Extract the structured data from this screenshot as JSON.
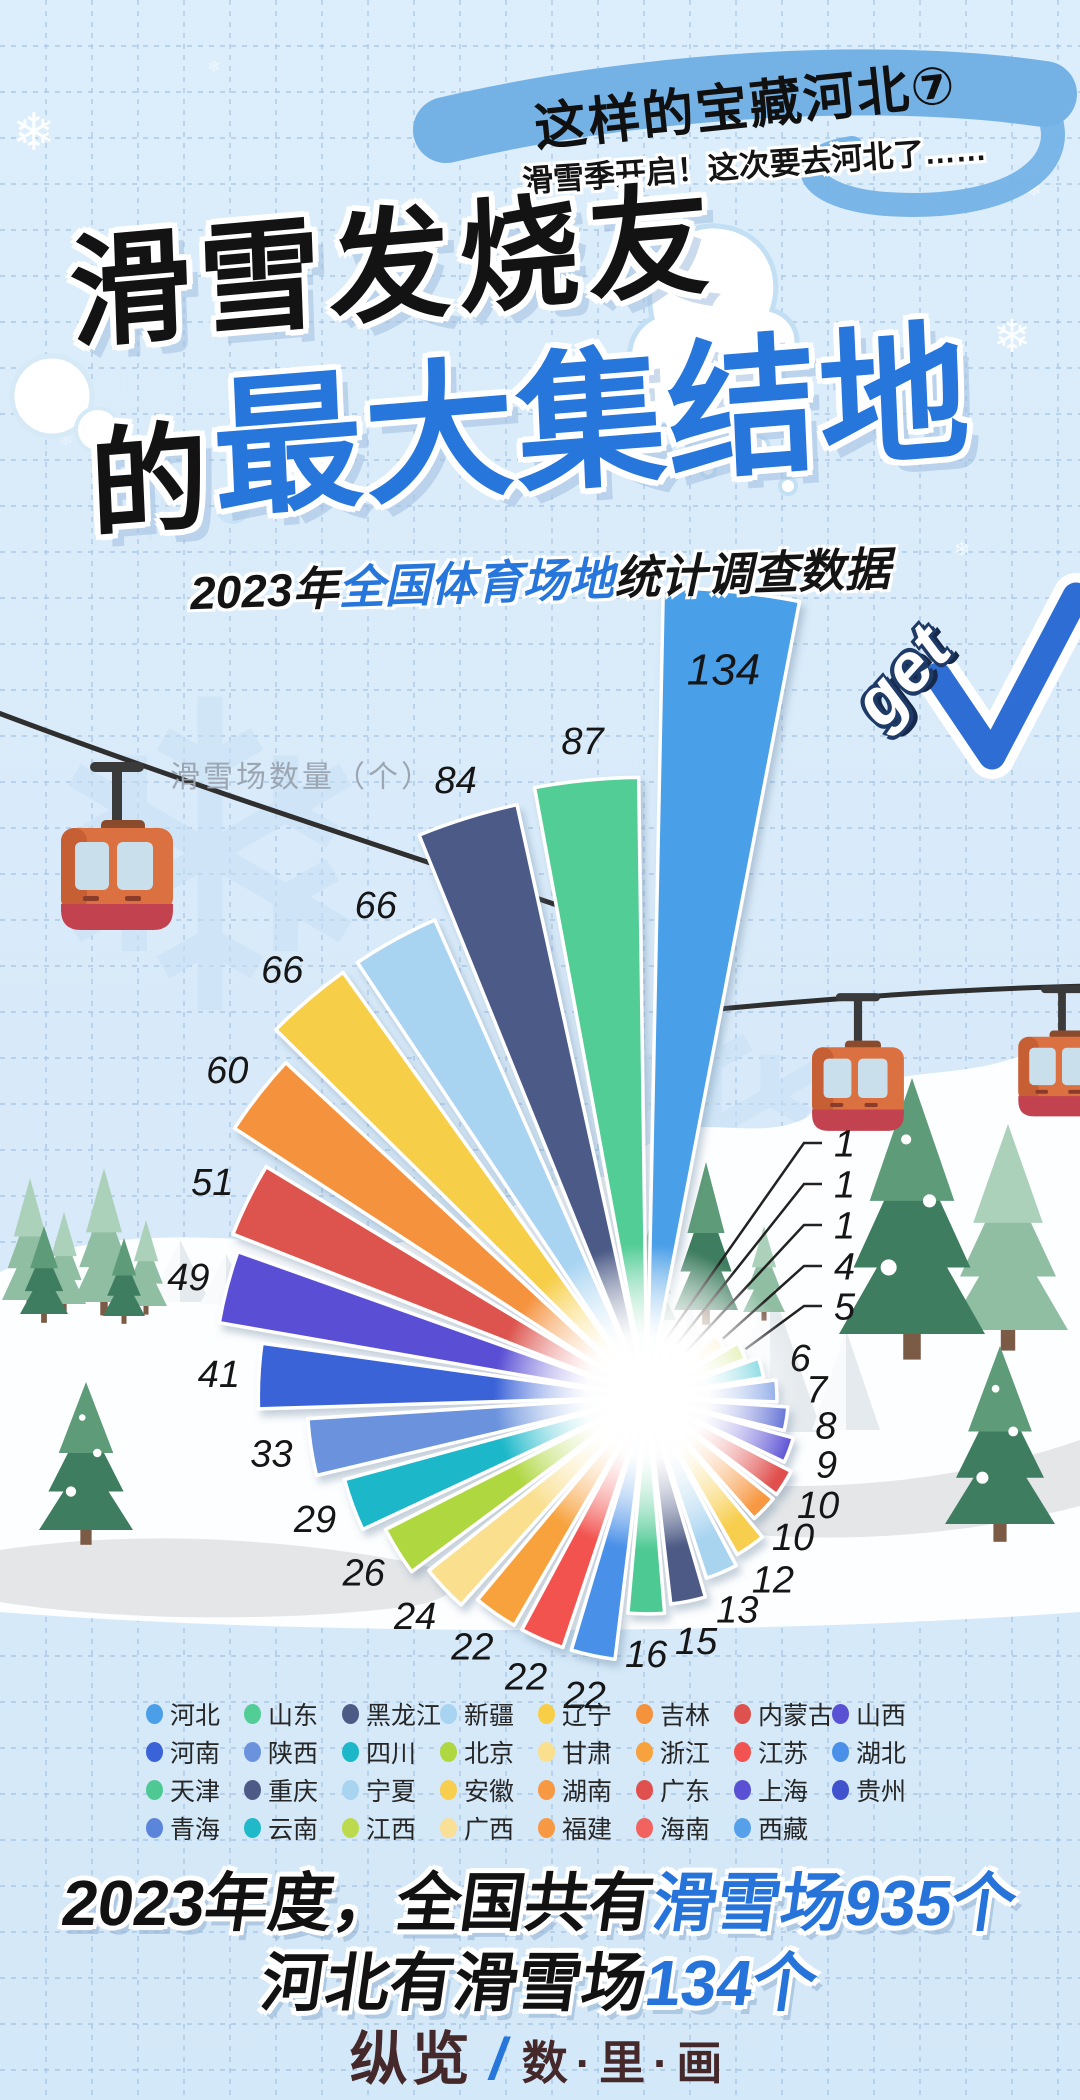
{
  "badge": {
    "title": "这样的宝藏河北⑦",
    "subtitle": "滑雪季开启！这次要去河北了……"
  },
  "title": {
    "line1": "滑雪发烧友",
    "line2_prefix": "的",
    "line2_main": "最大集结地",
    "get_label": "get"
  },
  "subtitle": {
    "prefix": "2023年",
    "highlight": "全国体育场地",
    "suffix": "统计调查数据"
  },
  "chart_data": {
    "type": "pie",
    "variant": "nightingale_rose",
    "title": "2023年全国体育场地统计调查数据",
    "unit_label": "滑雪场数量（个）",
    "start_angle_deg": 84,
    "direction": "counterclockwise",
    "series": [
      {
        "name": "河北",
        "value": 134,
        "color": "#4A9FE8"
      },
      {
        "name": "山东",
        "value": 87,
        "color": "#52CD96"
      },
      {
        "name": "黑龙江",
        "value": 84,
        "color": "#4C5A86"
      },
      {
        "name": "新疆",
        "value": 66,
        "color": "#A8D4F2"
      },
      {
        "name": "辽宁",
        "value": 66,
        "color": "#F7CE46"
      },
      {
        "name": "吉林",
        "value": 60,
        "color": "#F5923C"
      },
      {
        "name": "内蒙古",
        "value": 51,
        "color": "#DD524E"
      },
      {
        "name": "山西",
        "value": 49,
        "color": "#5A50D4"
      },
      {
        "name": "河南",
        "value": 41,
        "color": "#3B63D8"
      },
      {
        "name": "陕西",
        "value": 33,
        "color": "#6B92DD"
      },
      {
        "name": "四川",
        "value": 29,
        "color": "#1CB8CA"
      },
      {
        "name": "北京",
        "value": 26,
        "color": "#AFD73F"
      },
      {
        "name": "甘肃",
        "value": 24,
        "color": "#F9DF8E"
      },
      {
        "name": "浙江",
        "value": 22,
        "color": "#F7A23C"
      },
      {
        "name": "江苏",
        "value": 22,
        "color": "#F25250"
      },
      {
        "name": "湖北",
        "value": 22,
        "color": "#4A90E8"
      },
      {
        "name": "天津",
        "value": 16,
        "color": "#4EC993"
      },
      {
        "name": "重庆",
        "value": 15,
        "color": "#4D5A85"
      },
      {
        "name": "宁夏",
        "value": 13,
        "color": "#A8D4F0"
      },
      {
        "name": "安徽",
        "value": 12,
        "color": "#F7CE4E"
      },
      {
        "name": "湖南",
        "value": 10,
        "color": "#F79843"
      },
      {
        "name": "广东",
        "value": 10,
        "color": "#E0504E"
      },
      {
        "name": "上海",
        "value": 9,
        "color": "#5A50D4"
      },
      {
        "name": "贵州",
        "value": 8,
        "color": "#4053CC"
      },
      {
        "name": "青海",
        "value": 7,
        "color": "#5B85DB"
      },
      {
        "name": "云南",
        "value": 6,
        "color": "#1FB9C9"
      },
      {
        "name": "江西",
        "value": 5,
        "color": "#BCDA4C"
      },
      {
        "name": "广西",
        "value": 4,
        "color": "#FADF96"
      },
      {
        "name": "福建",
        "value": 1,
        "color": "#F79843"
      },
      {
        "name": "海南",
        "value": 1,
        "color": "#F2635F"
      },
      {
        "name": "西藏",
        "value": 1,
        "color": "#55A0E8"
      }
    ]
  },
  "footer_stats": {
    "line1_prefix": "2023年度，全国共有",
    "line1_highlight": "滑雪场935个",
    "line2_prefix": "河北有滑雪场",
    "line2_highlight": "134个"
  },
  "brand": {
    "name": "纵览",
    "separator": "/",
    "sub": "数·里·画"
  },
  "colors": {
    "accent_blue": "#2776DB",
    "ribbon_blue": "#74B2E6",
    "background": "#D9EBF9"
  },
  "decor": {
    "snowflake_glyph": "❄"
  }
}
